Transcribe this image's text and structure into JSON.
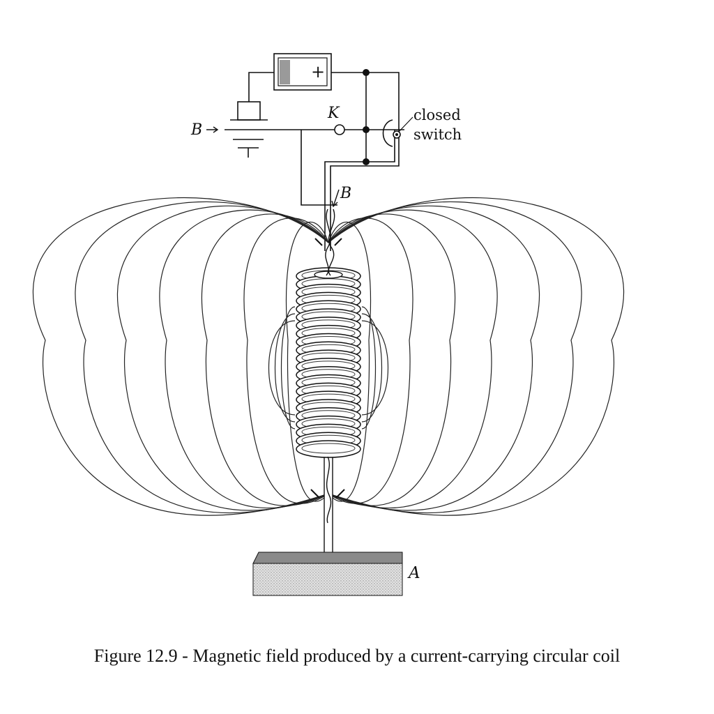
{
  "labels": {
    "battery_plus": "+",
    "key": "K",
    "b_left": "B",
    "b_wire": "B",
    "closed": "closed",
    "switch": "switch",
    "base_label": "A"
  },
  "caption": "Figure 12.9 - Magnetic field produced by a current-carrying circular coil",
  "colors": {
    "ink": "#111111",
    "background": "#ffffff",
    "base_fill": "#d9d9d9",
    "base_top": "#8a8a8a",
    "battery_fill": "#9a9a9a"
  },
  "diagram": {
    "coil_turns": 22,
    "field_loops_per_side": 7
  }
}
